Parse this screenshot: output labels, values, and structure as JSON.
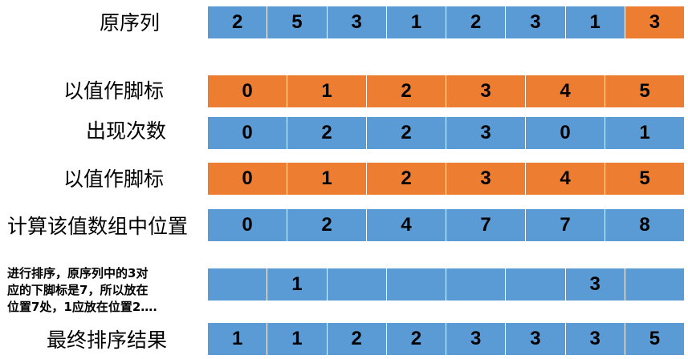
{
  "colors": {
    "blue": "#5b9bd5",
    "orange": "#ed7d31"
  },
  "labels": {
    "original": "原序列",
    "index1": "以值作脚标",
    "count": "出现次数",
    "index2": "以值作脚标",
    "position": "计算该值数组中位置",
    "note_line1": "进行排序，原序列中的3对",
    "note_line2": "应的下脚标是7，所以放在",
    "note_line3": "位置7处，1应放在位置2….",
    "result": "最终排序结果"
  },
  "rows": {
    "original": [
      "2",
      "5",
      "3",
      "1",
      "2",
      "3",
      "1",
      "3"
    ],
    "index1": [
      "0",
      "1",
      "2",
      "3",
      "4",
      "5"
    ],
    "count": [
      "0",
      "2",
      "2",
      "3",
      "0",
      "1"
    ],
    "index2": [
      "0",
      "1",
      "2",
      "3",
      "4",
      "5"
    ],
    "position": [
      "0",
      "2",
      "4",
      "7",
      "7",
      "8"
    ],
    "placement": [
      "",
      "1",
      "",
      "",
      "",
      "",
      "3",
      ""
    ],
    "result": [
      "1",
      "1",
      "2",
      "2",
      "3",
      "3",
      "3",
      "5"
    ]
  }
}
